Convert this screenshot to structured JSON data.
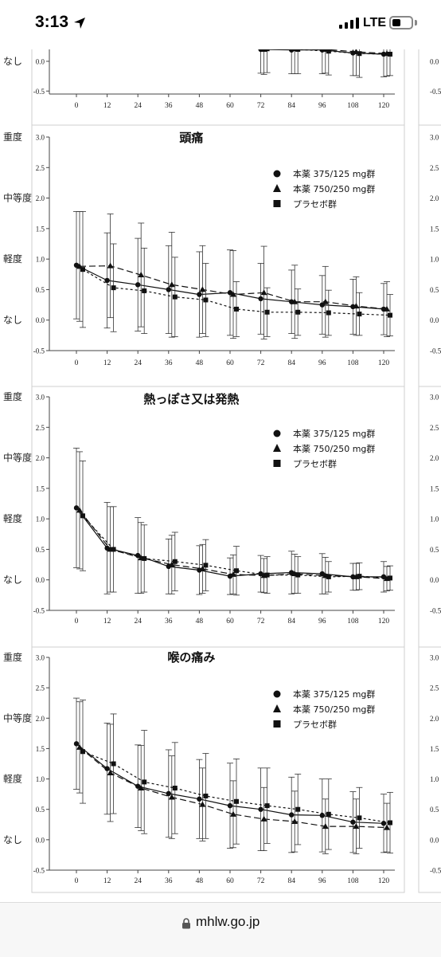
{
  "status_bar": {
    "time": "3:13",
    "network": "LTE",
    "battery_level": 0.45
  },
  "browser": {
    "url": "mhlw.go.jp"
  },
  "y_labels": {
    "severe": "重度",
    "moderate": "中等度",
    "mild": "軽度",
    "none": "なし"
  },
  "chart_data": [
    {
      "type": "line",
      "title": "",
      "x": [
        0,
        12,
        24,
        36,
        48,
        60,
        72,
        84,
        96,
        108,
        120
      ],
      "xticks": [
        "0",
        "12",
        "24",
        "36",
        "48",
        "60",
        "72",
        "84",
        "96",
        "108",
        "120"
      ],
      "yticks": [
        "-0.5",
        "0.0"
      ],
      "ylim": [
        -0.55,
        0.2
      ],
      "legend": false,
      "series": [
        {
          "marker": "circle",
          "values": [
            null,
            null,
            null,
            null,
            null,
            null,
            0.2,
            0.19,
            0.19,
            0.14,
            0.12
          ],
          "err": [
            null,
            null,
            null,
            null,
            null,
            null,
            0.4,
            0.4,
            0.4,
            0.38,
            0.38
          ]
        },
        {
          "marker": "triangle",
          "values": [
            null,
            null,
            null,
            null,
            null,
            null,
            0.2,
            0.21,
            0.2,
            0.16,
            0.13
          ],
          "err": [
            null,
            null,
            null,
            null,
            null,
            null,
            0.42,
            0.42,
            0.4,
            0.4,
            0.38
          ]
        },
        {
          "marker": "square",
          "values": [
            null,
            null,
            null,
            null,
            null,
            null,
            0.21,
            0.2,
            0.17,
            0.13,
            0.12
          ],
          "err": [
            null,
            null,
            null,
            null,
            null,
            null,
            0.4,
            0.41,
            0.4,
            0.4,
            0.36
          ]
        }
      ]
    },
    {
      "type": "line",
      "title": "頭痛",
      "x": [
        0,
        12,
        24,
        36,
        48,
        60,
        72,
        84,
        96,
        108,
        120
      ],
      "xticks": [
        "0",
        "12",
        "24",
        "36",
        "48",
        "60",
        "72",
        "84",
        "96",
        "108",
        "120"
      ],
      "yticks": [
        "-0.5",
        "0.0",
        "0.5",
        "1.0",
        "1.5",
        "2.0",
        "2.5",
        "3.0"
      ],
      "ylim": [
        -0.5,
        3.0
      ],
      "legend": true,
      "series": [
        {
          "name": "本薬 375/125 mg群",
          "marker": "circle",
          "values": [
            0.9,
            0.65,
            0.58,
            0.5,
            0.42,
            0.45,
            0.35,
            0.3,
            0.25,
            0.22,
            0.18
          ],
          "err": [
            0.88,
            0.78,
            0.76,
            0.72,
            0.7,
            0.7,
            0.58,
            0.52,
            0.48,
            0.45,
            0.42
          ]
        },
        {
          "name": "本薬 750/250 mg群",
          "marker": "triangle",
          "values": [
            0.88,
            0.89,
            0.74,
            0.58,
            0.5,
            0.42,
            0.45,
            0.3,
            0.3,
            0.23,
            0.18
          ],
          "err": [
            0.9,
            0.85,
            0.85,
            0.86,
            0.72,
            0.72,
            0.76,
            0.6,
            0.58,
            0.48,
            0.45
          ]
        },
        {
          "name": "プラセボ群",
          "marker": "square",
          "values": [
            0.83,
            0.53,
            0.48,
            0.38,
            0.33,
            0.18,
            0.13,
            0.13,
            0.12,
            0.1,
            0.08
          ],
          "err": [
            0.95,
            0.72,
            0.7,
            0.65,
            0.6,
            0.45,
            0.4,
            0.38,
            0.37,
            0.35,
            0.34
          ]
        }
      ]
    },
    {
      "type": "line",
      "title": "熱っぽさ又は発熱",
      "x": [
        0,
        12,
        24,
        36,
        48,
        60,
        72,
        84,
        96,
        108,
        120
      ],
      "xticks": [
        "0",
        "12",
        "24",
        "36",
        "48",
        "60",
        "72",
        "84",
        "96",
        "108",
        "120"
      ],
      "yticks": [
        "-0.5",
        "0.0",
        "0.5",
        "1.0",
        "1.5",
        "2.0",
        "2.5",
        "3.0"
      ],
      "ylim": [
        -0.5,
        3.0
      ],
      "legend": true,
      "series": [
        {
          "name": "本薬 375/125 mg群",
          "marker": "circle",
          "values": [
            1.18,
            0.52,
            0.4,
            0.22,
            0.16,
            0.06,
            0.1,
            0.12,
            0.1,
            0.05,
            0.05
          ],
          "err": [
            0.98,
            0.75,
            0.62,
            0.45,
            0.4,
            0.3,
            0.3,
            0.35,
            0.33,
            0.22,
            0.25
          ]
        },
        {
          "name": "本薬 750/250 mg群",
          "marker": "triangle",
          "values": [
            1.14,
            0.5,
            0.36,
            0.25,
            0.18,
            0.09,
            0.07,
            0.1,
            0.07,
            0.05,
            0.02
          ],
          "err": [
            0.96,
            0.7,
            0.58,
            0.48,
            0.4,
            0.32,
            0.28,
            0.32,
            0.3,
            0.22,
            0.2
          ]
        },
        {
          "name": "プラセボ群",
          "marker": "square",
          "values": [
            1.05,
            0.5,
            0.35,
            0.3,
            0.24,
            0.15,
            0.08,
            0.08,
            0.05,
            0.06,
            0.03
          ],
          "err": [
            0.9,
            0.7,
            0.55,
            0.48,
            0.42,
            0.4,
            0.3,
            0.3,
            0.25,
            0.22,
            0.2
          ]
        }
      ]
    },
    {
      "type": "line",
      "title": "喉の痛み",
      "x": [
        0,
        12,
        24,
        36,
        48,
        60,
        72,
        84,
        96,
        108,
        120
      ],
      "xticks": [
        "0",
        "12",
        "24",
        "36",
        "48",
        "60",
        "72",
        "84",
        "96",
        "108",
        "120"
      ],
      "yticks": [
        "-0.5",
        "0.0",
        "0.5",
        "1.0",
        "1.5",
        "2.0",
        "2.5",
        "3.0"
      ],
      "ylim": [
        -0.5,
        3.0
      ],
      "legend": true,
      "series": [
        {
          "name": "本薬 375/125 mg群",
          "marker": "circle",
          "values": [
            1.58,
            1.17,
            0.88,
            0.76,
            0.67,
            0.56,
            0.5,
            0.41,
            0.4,
            0.29,
            0.27
          ],
          "err": [
            0.75,
            0.75,
            0.68,
            0.72,
            0.65,
            0.7,
            0.68,
            0.62,
            0.6,
            0.5,
            0.48
          ]
        },
        {
          "name": "本薬 750/250 mg群",
          "marker": "triangle",
          "values": [
            1.52,
            1.1,
            0.85,
            0.7,
            0.58,
            0.42,
            0.34,
            0.3,
            0.22,
            0.22,
            0.2
          ],
          "err": [
            0.75,
            0.8,
            0.7,
            0.68,
            0.6,
            0.55,
            0.52,
            0.5,
            0.45,
            0.45,
            0.4
          ]
        },
        {
          "name": "プラセボ群",
          "marker": "square",
          "values": [
            1.45,
            1.25,
            0.95,
            0.85,
            0.72,
            0.63,
            0.56,
            0.5,
            0.42,
            0.36,
            0.28
          ],
          "err": [
            0.85,
            0.82,
            0.85,
            0.75,
            0.7,
            0.7,
            0.62,
            0.58,
            0.58,
            0.5,
            0.5
          ]
        }
      ]
    }
  ]
}
